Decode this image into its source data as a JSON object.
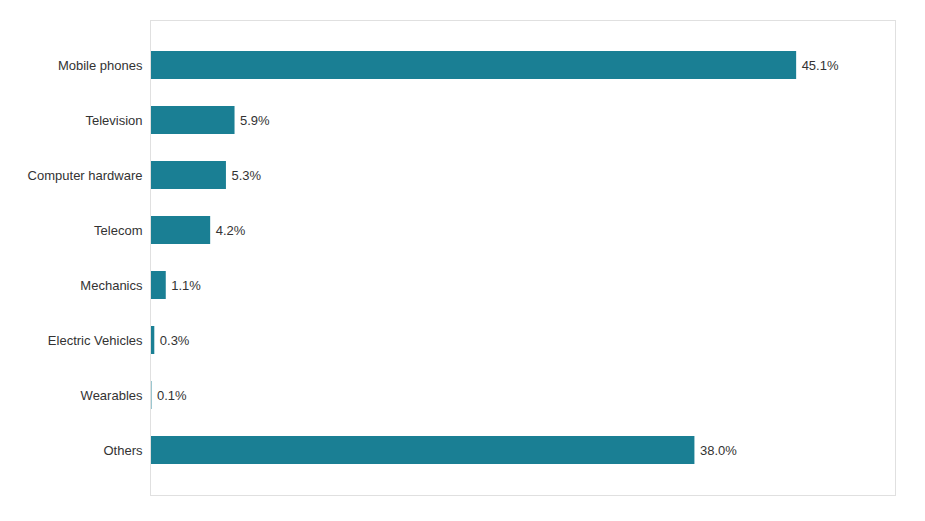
{
  "chart_data": {
    "type": "bar",
    "orientation": "horizontal",
    "categories": [
      "Mobile phones",
      "Television",
      "Computer hardware",
      "Telecom",
      "Mechanics",
      "Electric Vehicles",
      "Wearables",
      "Others"
    ],
    "values": [
      45.1,
      5.9,
      5.3,
      4.2,
      1.1,
      0.3,
      0.1,
      38.0
    ],
    "value_labels": [
      "45.1%",
      "5.9%",
      "5.3%",
      "4.2%",
      "1.1%",
      "0.3%",
      "0.1%",
      "38.0%"
    ],
    "data_labels": true,
    "color": "#1a7f94",
    "xlim": [
      0,
      52
    ],
    "tick_labels": "y",
    "grid": false
  }
}
